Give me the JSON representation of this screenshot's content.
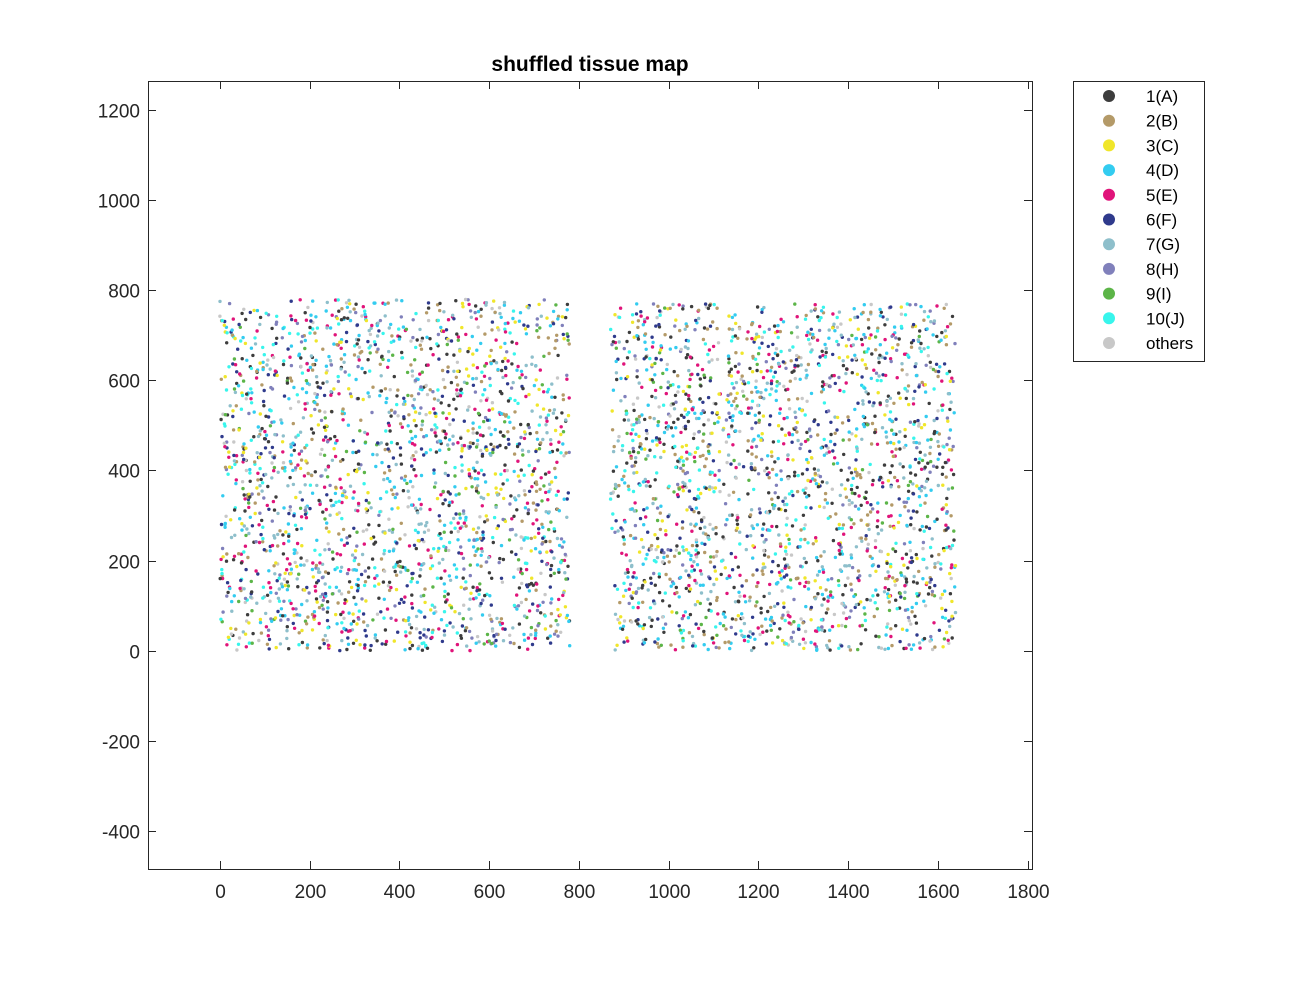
{
  "chart_data": {
    "type": "scatter",
    "title": "shuffled tissue map",
    "xlabel": "",
    "ylabel": "",
    "xlim": [
      -160,
      1810
    ],
    "ylim": [
      -485,
      1265
    ],
    "x_ticks": [
      0,
      200,
      400,
      600,
      800,
      1000,
      1200,
      1400,
      1600,
      1800
    ],
    "y_ticks": [
      -400,
      -200,
      0,
      200,
      400,
      600,
      800,
      1000,
      1200
    ],
    "grid": false,
    "legend_position": "outside-top-right",
    "regions": [
      {
        "name": "left tissue section",
        "x_range": [
          0,
          780
        ],
        "y_range": [
          0,
          780
        ]
      },
      {
        "name": "right tissue section",
        "x_range": [
          870,
          1640
        ],
        "y_range": [
          0,
          770
        ]
      }
    ],
    "series": [
      {
        "name": "1(A)",
        "color": "#3d3d3d"
      },
      {
        "name": "2(B)",
        "color": "#b49a68"
      },
      {
        "name": "3(C)",
        "color": "#f0e62a"
      },
      {
        "name": "4(D)",
        "color": "#33ccf0"
      },
      {
        "name": "5(E)",
        "color": "#e0147a"
      },
      {
        "name": "6(F)",
        "color": "#2f3a8c"
      },
      {
        "name": "7(G)",
        "color": "#8ebfcb"
      },
      {
        "name": "8(H)",
        "color": "#8080bb"
      },
      {
        "name": "9(I)",
        "color": "#5cb548"
      },
      {
        "name": "10(J)",
        "color": "#38f5ec"
      },
      {
        "name": "others",
        "color": "#c8c8c8"
      }
    ],
    "point_weights": [
      0.13,
      0.1,
      0.08,
      0.14,
      0.1,
      0.08,
      0.11,
      0.07,
      0.05,
      0.08,
      0.06
    ],
    "point_count_per_region": 2200
  }
}
